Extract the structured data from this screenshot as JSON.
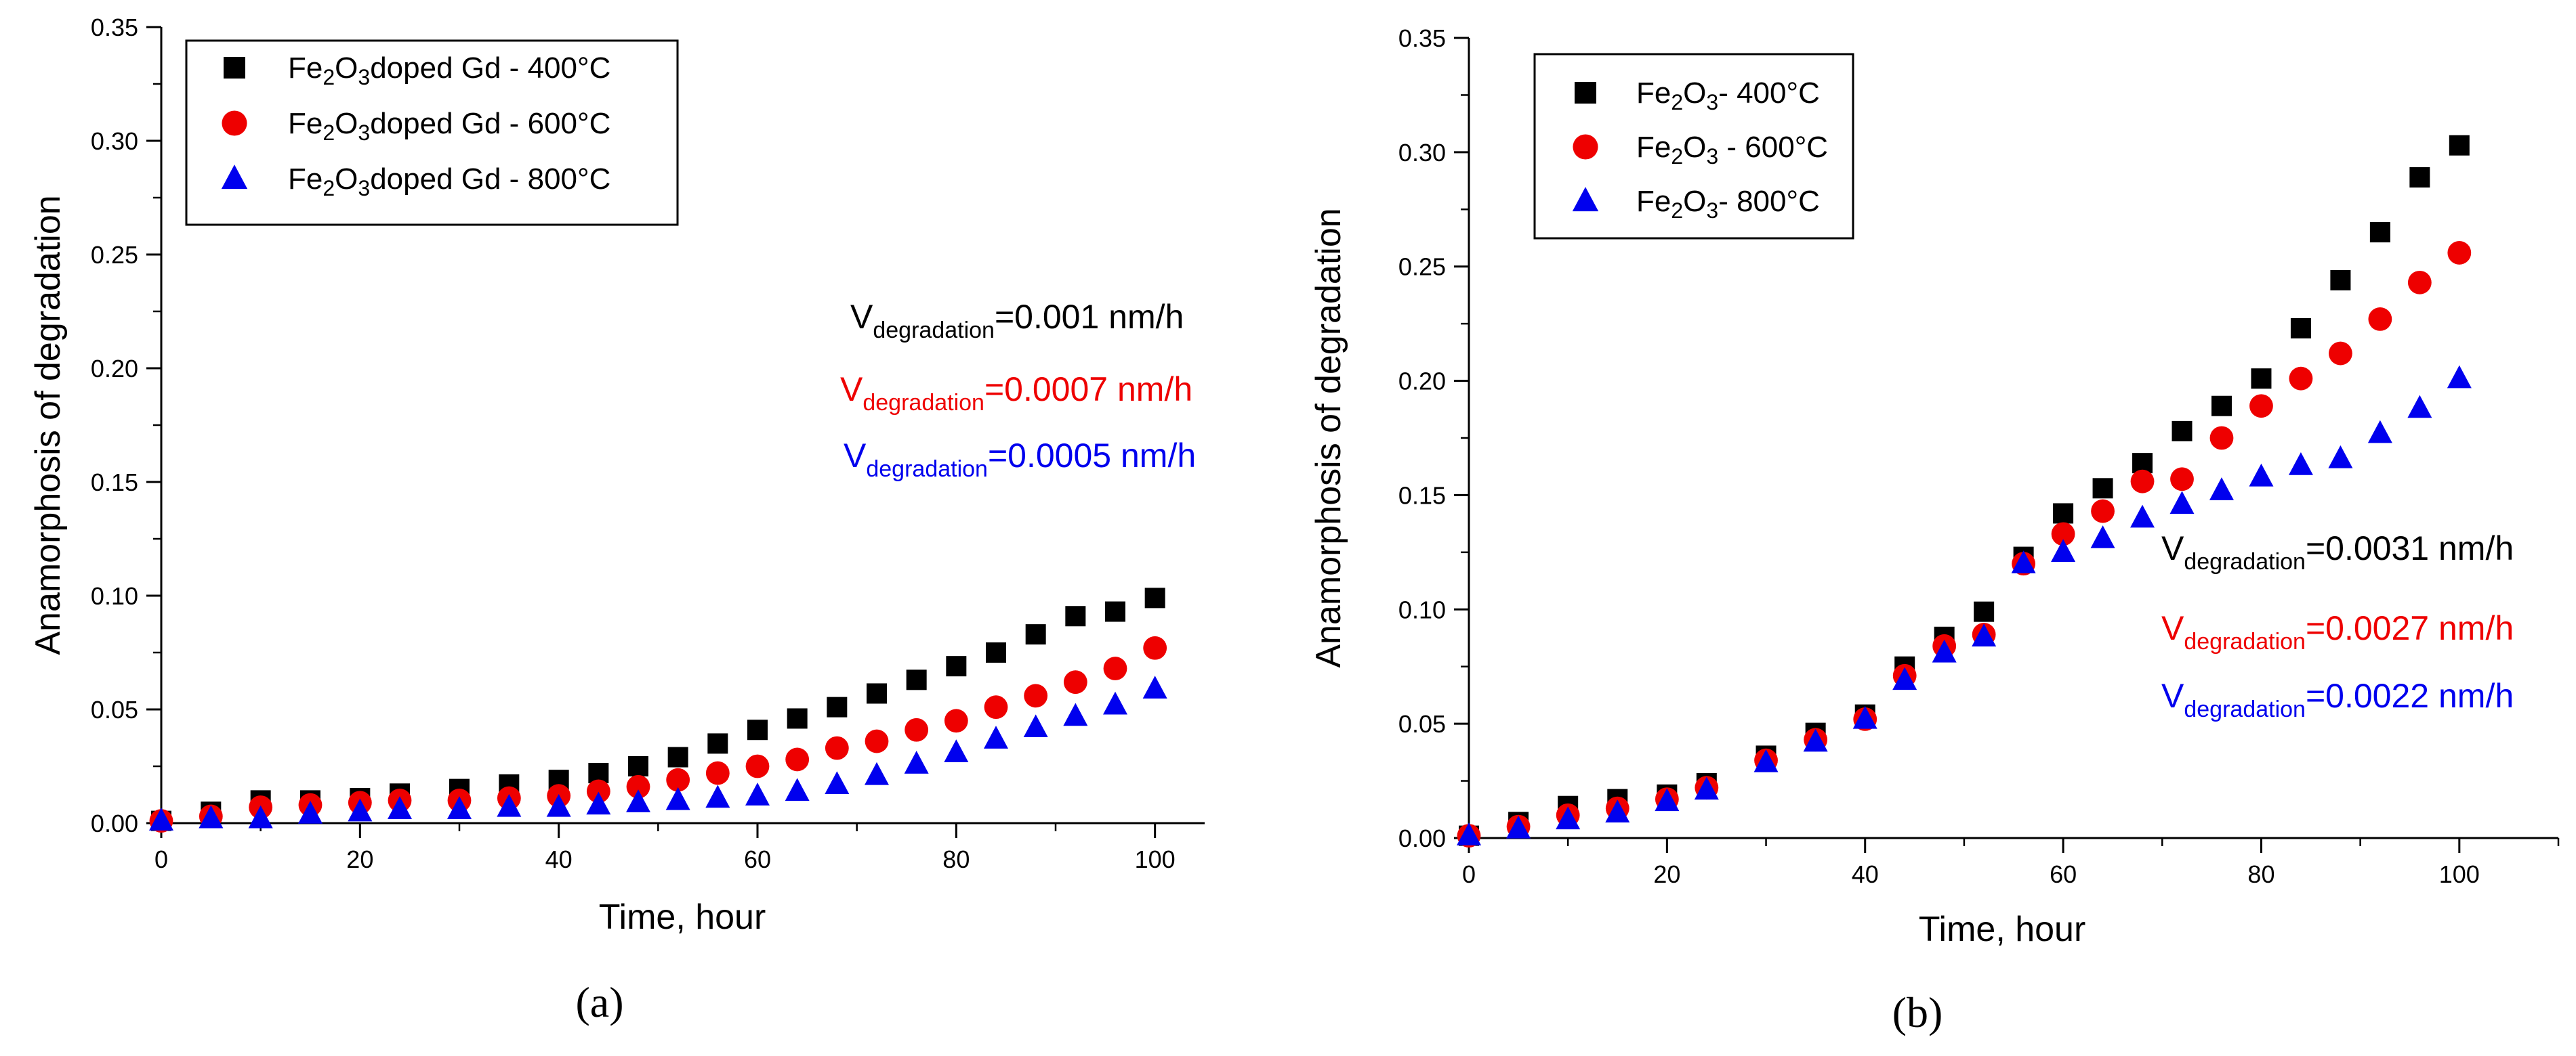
{
  "chart_data": [
    {
      "type": "scatter",
      "panel_label": "(a)",
      "xlabel": "Time, hour",
      "ylabel": "Anamorphosis of degradation",
      "xlim": [
        0,
        105
      ],
      "ylim": [
        0,
        0.35
      ],
      "x_ticks": [
        0,
        20,
        40,
        60,
        80,
        100
      ],
      "x_tick_labels": [
        "0",
        "20",
        "40",
        "60",
        "80",
        "100"
      ],
      "y_ticks": [
        0,
        0.05,
        0.1,
        0.15,
        0.2,
        0.25,
        0.3,
        0.35
      ],
      "y_tick_labels": [
        "0.00",
        "0.05",
        "0.10",
        "0.15",
        "0.20",
        "0.25",
        "0.30",
        "0.35"
      ],
      "grid": false,
      "legend_position": "top-left",
      "series": [
        {
          "name": "Fe2O3doped Gd - 400°C",
          "legend_formula": [
            "Fe",
            "2",
            "O",
            "3",
            "doped Gd - 400°C"
          ],
          "marker": "square",
          "color": "#000000",
          "x": [
            0,
            5,
            10,
            15,
            20,
            24,
            30,
            35,
            40,
            44,
            48,
            52,
            56,
            60,
            64,
            68,
            72,
            76,
            80,
            84,
            88,
            92,
            96,
            100
          ],
          "values": [
            0.001,
            0.005,
            0.01,
            0.01,
            0.011,
            0.013,
            0.015,
            0.017,
            0.019,
            0.022,
            0.025,
            0.029,
            0.035,
            0.041,
            0.046,
            0.051,
            0.057,
            0.063,
            0.069,
            0.075,
            0.083,
            0.091,
            0.093,
            0.099
          ]
        },
        {
          "name": "Fe2O3doped Gd - 600°C",
          "legend_formula": [
            "Fe",
            "2",
            "O",
            "3",
            "doped Gd - 600°C"
          ],
          "marker": "circle",
          "color": "#ee0000",
          "x": [
            0,
            5,
            10,
            15,
            20,
            24,
            30,
            35,
            40,
            44,
            48,
            52,
            56,
            60,
            64,
            68,
            72,
            76,
            80,
            84,
            88,
            92,
            96,
            100
          ],
          "values": [
            0.001,
            0.003,
            0.007,
            0.008,
            0.009,
            0.01,
            0.01,
            0.011,
            0.012,
            0.014,
            0.016,
            0.019,
            0.022,
            0.025,
            0.028,
            0.033,
            0.036,
            0.041,
            0.045,
            0.051,
            0.056,
            0.062,
            0.068,
            0.077
          ]
        },
        {
          "name": "Fe2O3doped Gd - 800°C",
          "legend_formula": [
            "Fe",
            "2",
            "O",
            "3",
            "doped Gd - 800°C"
          ],
          "marker": "triangle",
          "color": "#0000ee",
          "x": [
            0,
            5,
            10,
            15,
            20,
            24,
            30,
            35,
            40,
            44,
            48,
            52,
            56,
            60,
            64,
            68,
            72,
            76,
            80,
            84,
            88,
            92,
            96,
            100
          ],
          "values": [
            0.001,
            0.002,
            0.002,
            0.004,
            0.005,
            0.006,
            0.006,
            0.007,
            0.007,
            0.008,
            0.009,
            0.01,
            0.011,
            0.012,
            0.014,
            0.017,
            0.021,
            0.026,
            0.031,
            0.037,
            0.042,
            0.047,
            0.052,
            0.059
          ]
        }
      ],
      "annotations": [
        {
          "prefix": "V",
          "subscript": "degradation",
          "value": "=0.001 nm/h",
          "color": "#000000"
        },
        {
          "prefix": "V",
          "subscript": "degradation",
          "value": "=0.0007 nm/h",
          "color": "#ee0000"
        },
        {
          "prefix": "V",
          "subscript": "degradation",
          "value": "=0.0005 nm/h",
          "color": "#0000ee"
        }
      ]
    },
    {
      "type": "scatter",
      "panel_label": "(b)",
      "xlabel": "Time, hour",
      "ylabel": "Anamorphosis of degradation",
      "xlim": [
        0,
        110
      ],
      "ylim": [
        0,
        0.35
      ],
      "x_ticks": [
        0,
        20,
        40,
        60,
        80,
        100
      ],
      "x_tick_labels": [
        "0",
        "20",
        "40",
        "60",
        "80",
        "100"
      ],
      "y_ticks": [
        0,
        0.05,
        0.1,
        0.15,
        0.2,
        0.25,
        0.3,
        0.35
      ],
      "y_tick_labels": [
        "0.00",
        "0.05",
        "0.10",
        "0.15",
        "0.20",
        "0.25",
        "0.30",
        "0.35"
      ],
      "grid": false,
      "legend_position": "top-left",
      "series": [
        {
          "name": "Fe2O3- 400°C",
          "legend_formula": [
            "Fe",
            "2",
            "O",
            "3",
            "- 400°C"
          ],
          "marker": "square",
          "color": "#000000",
          "x": [
            0,
            5,
            10,
            15,
            20,
            24,
            30,
            35,
            40,
            44,
            48,
            52,
            56,
            60,
            64,
            68,
            72,
            76,
            80,
            84,
            88,
            92,
            96,
            100
          ],
          "values": [
            0.001,
            0.007,
            0.014,
            0.017,
            0.019,
            0.024,
            0.036,
            0.046,
            0.054,
            0.075,
            0.088,
            0.099,
            0.123,
            0.142,
            0.153,
            0.164,
            0.178,
            0.189,
            0.201,
            0.223,
            0.244,
            0.265,
            0.289,
            0.303
          ]
        },
        {
          "name": "Fe2O3 - 600°C",
          "legend_formula": [
            "Fe",
            "2",
            "O",
            "3",
            " - 600°C"
          ],
          "marker": "circle",
          "color": "#ee0000",
          "x": [
            0,
            5,
            10,
            15,
            20,
            24,
            30,
            35,
            40,
            44,
            48,
            52,
            56,
            60,
            64,
            68,
            72,
            76,
            80,
            84,
            88,
            92,
            96,
            100
          ],
          "values": [
            0.001,
            0.005,
            0.01,
            0.013,
            0.017,
            0.022,
            0.034,
            0.043,
            0.052,
            0.071,
            0.084,
            0.089,
            0.12,
            0.133,
            0.143,
            0.156,
            0.157,
            0.175,
            0.189,
            0.201,
            0.212,
            0.227,
            0.243,
            0.256
          ]
        },
        {
          "name": "Fe2O3- 800°C",
          "legend_formula": [
            "Fe",
            "2",
            "O",
            "3",
            "- 800°C"
          ],
          "marker": "triangle",
          "color": "#0000ee",
          "x": [
            0,
            5,
            10,
            15,
            20,
            24,
            30,
            35,
            40,
            44,
            48,
            52,
            56,
            60,
            64,
            68,
            72,
            76,
            80,
            84,
            88,
            92,
            96,
            100
          ],
          "values": [
            0.001,
            0.004,
            0.008,
            0.011,
            0.016,
            0.021,
            0.033,
            0.042,
            0.052,
            0.069,
            0.081,
            0.088,
            0.12,
            0.125,
            0.131,
            0.14,
            0.146,
            0.152,
            0.158,
            0.163,
            0.166,
            0.177,
            0.188,
            0.201
          ]
        }
      ],
      "annotations": [
        {
          "prefix": "V",
          "subscript": "degradation",
          "value": "=0.0031 nm/h",
          "color": "#000000"
        },
        {
          "prefix": "V",
          "subscript": "degradation",
          "value": "=0.0027 nm/h",
          "color": "#ee0000"
        },
        {
          "prefix": "V",
          "subscript": "degradation",
          "value": "=0.0022 nm/h",
          "color": "#0000ee"
        }
      ]
    }
  ]
}
